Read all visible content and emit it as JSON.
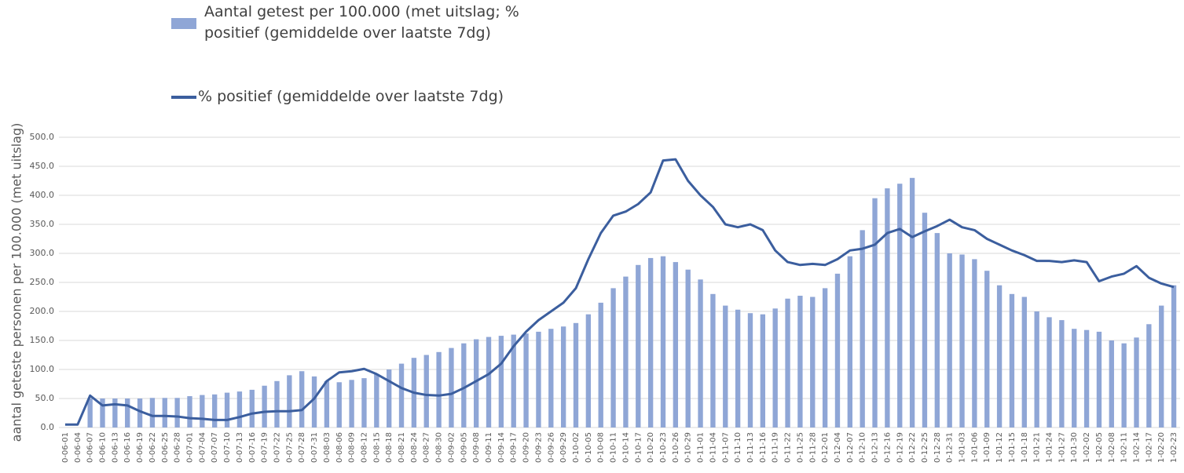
{
  "chart_data": {
    "type": "bar_line",
    "y_label": "aantal geteste personen per 100.000 (met uitslag)",
    "categories": [
      "0-06-01",
      "0-06-04",
      "0-06-07",
      "0-06-10",
      "0-06-13",
      "0-06-16",
      "0-06-19",
      "0-06-22",
      "0-06-25",
      "0-06-28",
      "0-07-01",
      "0-07-04",
      "0-07-07",
      "0-07-10",
      "0-07-13",
      "0-07-16",
      "0-07-19",
      "0-07-22",
      "0-07-25",
      "0-07-28",
      "0-07-31",
      "0-08-03",
      "0-08-06",
      "0-08-09",
      "0-08-12",
      "0-08-15",
      "0-08-18",
      "0-08-21",
      "0-08-24",
      "0-08-27",
      "0-08-30",
      "0-09-02",
      "0-09-05",
      "0-09-08",
      "0-09-11",
      "0-09-14",
      "0-09-17",
      "0-09-20",
      "0-09-23",
      "0-09-26",
      "0-09-29",
      "0-10-02",
      "0-10-05",
      "0-10-08",
      "0-10-11",
      "0-10-14",
      "0-10-17",
      "0-10-20",
      "0-10-23",
      "0-10-26",
      "0-10-29",
      "0-11-01",
      "0-11-04",
      "0-11-07",
      "0-11-10",
      "0-11-13",
      "0-11-16",
      "0-11-19",
      "0-11-22",
      "0-11-25",
      "0-11-28",
      "0-12-01",
      "0-12-04",
      "0-12-07",
      "0-12-10",
      "0-12-13",
      "0-12-16",
      "0-12-19",
      "0-12-22",
      "0-12-25",
      "0-12-28",
      "0-12-31",
      "1-01-03",
      "1-01-06",
      "1-01-09",
      "1-01-12",
      "1-01-15",
      "1-01-18",
      "1-01-21",
      "1-01-24",
      "1-01-27",
      "1-01-30",
      "1-02-02",
      "1-02-05",
      "1-02-08",
      "1-02-11",
      "1-02-14",
      "1-02-17",
      "1-02-20",
      "1-02-23"
    ],
    "series": [
      {
        "name": "Aantal getest per 100.000 (met uitslag; % positief (gemiddelde over laatste 7dg)",
        "kind": "bar",
        "color": "#8fa6d6",
        "values": [
          0,
          0,
          50,
          50,
          50,
          50,
          50,
          51,
          51,
          51,
          54,
          56,
          57,
          60,
          62,
          65,
          72,
          80,
          90,
          97,
          88,
          80,
          78,
          82,
          85,
          92,
          100,
          110,
          120,
          125,
          130,
          137,
          145,
          152,
          156,
          158,
          160,
          162,
          165,
          170,
          174,
          180,
          195,
          215,
          240,
          260,
          280,
          292,
          295,
          285,
          272,
          255,
          230,
          210,
          203,
          197,
          195,
          205,
          222,
          227,
          225,
          240,
          265,
          295,
          340,
          395,
          412,
          420,
          430,
          370,
          335,
          300,
          298,
          290,
          270,
          245,
          230,
          225,
          200,
          190,
          185,
          170,
          168,
          165,
          150,
          145,
          155,
          178,
          210,
          245
        ]
      },
      {
        "name": "% positief (gemiddelde over laatste 7dg)",
        "kind": "line",
        "color": "#3b5e9e",
        "values": [
          5,
          5,
          55,
          38,
          40,
          38,
          28,
          20,
          20,
          19,
          16,
          15,
          13,
          13,
          18,
          24,
          27,
          28,
          28,
          30,
          50,
          80,
          95,
          97,
          101,
          92,
          80,
          68,
          60,
          56,
          55,
          58,
          68,
          80,
          92,
          110,
          140,
          165,
          185,
          200,
          215,
          240,
          290,
          335,
          365,
          372,
          385,
          405,
          460,
          462,
          425,
          400,
          380,
          350,
          345,
          350,
          340,
          305,
          285,
          280,
          282,
          280,
          290,
          305,
          308,
          315,
          335,
          342,
          328,
          338,
          347,
          358,
          345,
          340,
          325,
          315,
          305,
          297,
          287,
          287,
          285,
          288,
          285,
          252,
          260,
          265,
          278,
          258,
          248,
          242
        ]
      }
    ],
    "ylim": [
      0,
      500
    ],
    "yticks": [
      {
        "value": 0,
        "label": "0.0"
      },
      {
        "value": 50,
        "label": "50.0"
      },
      {
        "value": 100,
        "label": "100.0"
      },
      {
        "value": 150,
        "label": "150.0"
      },
      {
        "value": 200,
        "label": "200.0"
      },
      {
        "value": 250,
        "label": "250.0"
      },
      {
        "value": 300,
        "label": "300.0"
      },
      {
        "value": 350,
        "label": "350.0"
      },
      {
        "value": 400,
        "label": "400.0"
      },
      {
        "value": 450,
        "label": "450.0"
      },
      {
        "value": 500,
        "label": "500.0"
      }
    ],
    "grid": true
  }
}
